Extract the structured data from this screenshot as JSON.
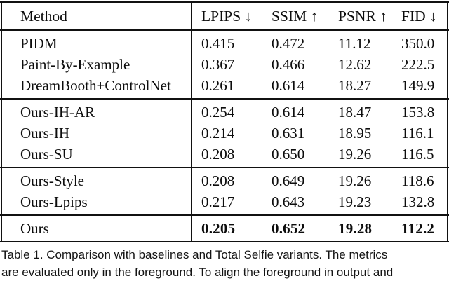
{
  "table": {
    "header": {
      "method": "Method",
      "columns": [
        "LPIPS ↓",
        "SSIM ↑",
        "PSNR ↑",
        "FID ↓"
      ]
    },
    "groups": [
      {
        "rows": [
          {
            "method": "PIDM",
            "values": [
              "0.415",
              "0.472",
              "11.12",
              "350.0"
            ]
          },
          {
            "method": "Paint-By-Example",
            "values": [
              "0.367",
              "0.466",
              "12.62",
              "222.5"
            ]
          },
          {
            "method": "DreamBooth+ControlNet",
            "values": [
              "0.261",
              "0.614",
              "18.27",
              "149.9"
            ]
          }
        ]
      },
      {
        "rows": [
          {
            "method": "Ours-IH-AR",
            "values": [
              "0.254",
              "0.614",
              "18.47",
              "153.8"
            ]
          },
          {
            "method": "Ours-IH",
            "values": [
              "0.214",
              "0.631",
              "18.95",
              "116.1"
            ]
          },
          {
            "method": "Ours-SU",
            "values": [
              "0.208",
              "0.650",
              "19.26",
              "116.5"
            ]
          }
        ]
      },
      {
        "rows": [
          {
            "method": "Ours-Style",
            "values": [
              "0.208",
              "0.649",
              "19.26",
              "118.6"
            ]
          },
          {
            "method": "Ours-Lpips",
            "values": [
              "0.217",
              "0.643",
              "19.23",
              "132.8"
            ]
          }
        ]
      },
      {
        "rows": [
          {
            "method": "Ours",
            "values": [
              "0.205",
              "0.652",
              "19.28",
              "112.2"
            ]
          }
        ]
      }
    ]
  },
  "caption": {
    "line1": "Table 1.  Comparison with baselines and Total Selfie variants. The metrics",
    "line2": "are evaluated only in the foreground. To align the foreground in output and"
  }
}
